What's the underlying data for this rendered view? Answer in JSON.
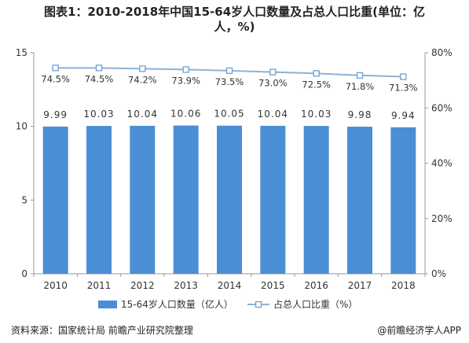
{
  "title_line1": "图表1：2010-2018年中国15-64岁人口数量及占总人口比重(单位：亿",
  "title_line2": "人，%)",
  "source": "资料来源：国家统计局 前瞻产业研究院整理",
  "credit": "@前瞻经济学人APP",
  "chart_data": {
    "type": "bar",
    "categories": [
      "2010",
      "2011",
      "2012",
      "2013",
      "2014",
      "2015",
      "2016",
      "2017",
      "2018"
    ],
    "series": [
      {
        "name": "15-64岁人口数量（亿人）",
        "type": "bar",
        "axis": "left",
        "values": [
          9.99,
          10.03,
          10.04,
          10.06,
          10.05,
          10.04,
          10.03,
          9.98,
          9.94
        ],
        "labels": [
          "9.99",
          "10.03",
          "10.04",
          "10.06",
          "10.05",
          "10.04",
          "10.03",
          "9.98",
          "9.94"
        ],
        "color": "#4a8fd6"
      },
      {
        "name": "占总人口比重（%）",
        "type": "line",
        "axis": "right",
        "values": [
          74.5,
          74.5,
          74.2,
          73.9,
          73.5,
          73.0,
          72.5,
          71.8,
          71.3
        ],
        "labels": [
          "74.5%",
          "74.5%",
          "74.2%",
          "73.9%",
          "73.5%",
          "73.0%",
          "72.5%",
          "71.8%",
          "71.3%"
        ],
        "color": "#8db3d9"
      }
    ],
    "left_axis": {
      "min": 0,
      "max": 15,
      "ticks": [
        "0",
        "5",
        "10",
        "15"
      ],
      "tick_values": [
        0,
        5,
        10,
        15
      ]
    },
    "right_axis": {
      "min": 0,
      "max": 80,
      "ticks": [
        "0%",
        "20%",
        "40%",
        "60%",
        "80%"
      ],
      "tick_values": [
        0,
        20,
        40,
        60,
        80
      ]
    },
    "grid": false,
    "legend_position": "bottom"
  }
}
